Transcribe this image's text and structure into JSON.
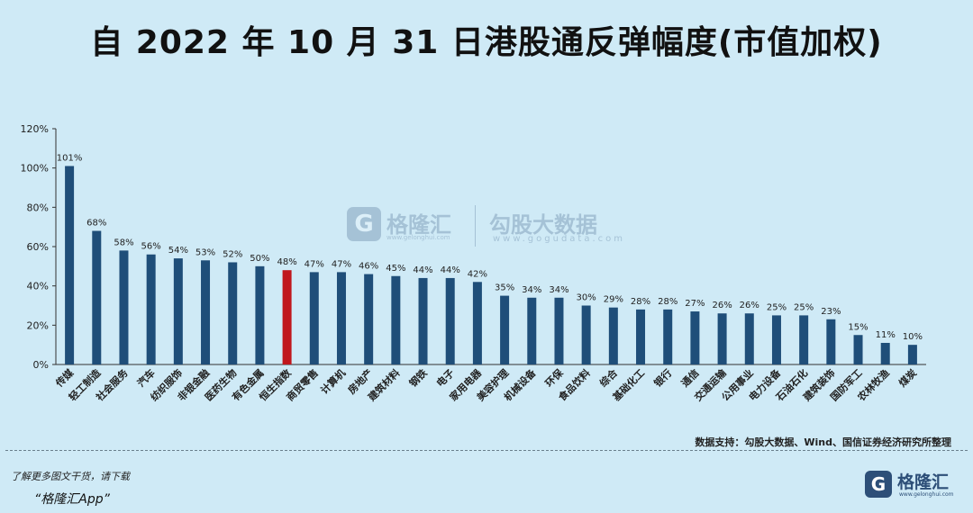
{
  "chart_data": {
    "type": "bar",
    "title": "自 2022 年 10 月 31 日港股通反弹幅度(市值加权)",
    "categories": [
      "传媒",
      "轻工制造",
      "社会服务",
      "汽车",
      "纺织服饰",
      "非银金融",
      "医药生物",
      "有色金属",
      "恒生指数",
      "商贸零售",
      "计算机",
      "房地产",
      "建筑材料",
      "钢铁",
      "电子",
      "家用电器",
      "美容护理",
      "机械设备",
      "环保",
      "食品饮料",
      "综合",
      "基础化工",
      "银行",
      "通信",
      "交通运输",
      "公用事业",
      "电力设备",
      "石油石化",
      "建筑装饰",
      "国防军工",
      "农林牧渔",
      "煤炭"
    ],
    "values": [
      101,
      68,
      58,
      56,
      54,
      53,
      52,
      50,
      48,
      47,
      47,
      46,
      45,
      44,
      44,
      42,
      35,
      34,
      34,
      30,
      29,
      28,
      28,
      27,
      26,
      26,
      25,
      25,
      23,
      15,
      11,
      10
    ],
    "data_labels": [
      "101%",
      "68%",
      "58%",
      "56%",
      "54%",
      "53%",
      "52%",
      "50%",
      "48%",
      "47%",
      "47%",
      "46%",
      "45%",
      "44%",
      "44%",
      "42%",
      "35%",
      "34%",
      "34%",
      "30%",
      "29%",
      "28%",
      "28%",
      "27%",
      "26%",
      "26%",
      "25%",
      "25%",
      "23%",
      "15%",
      "11%",
      "10%"
    ],
    "highlight_index": 8,
    "ylim": [
      0,
      120
    ],
    "yticks": [
      "0%",
      "20%",
      "40%",
      "60%",
      "80%",
      "100%",
      "120%"
    ],
    "xlabel": "",
    "ylabel": "",
    "colors": {
      "bar": "#1f4e79",
      "highlight": "#c0171d"
    }
  },
  "watermark": {
    "brand1": "格隆汇",
    "brand1_url": "www.gelonghui.com",
    "brand2": "勾股大数据",
    "brand2_url": "www.gogudata.com"
  },
  "footer": {
    "source": "数据支持：勾股大数据、Wind、国信证券经济研究所整理",
    "promo_line1": "了解更多图文干货，请下载",
    "promo_line2": "“格隆汇App”",
    "brand_name": "格隆汇",
    "brand_url": "www.gelonghui.com"
  }
}
